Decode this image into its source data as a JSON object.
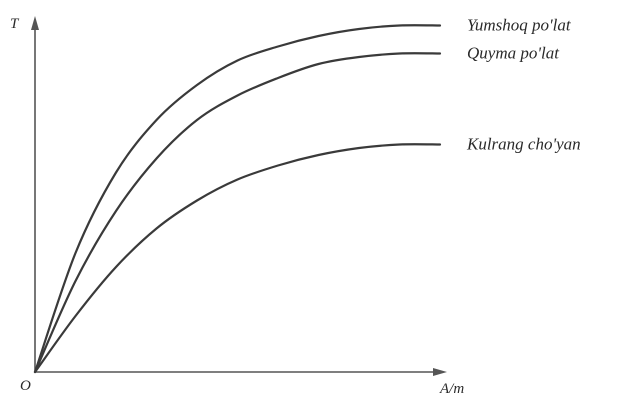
{
  "chart_data": {
    "type": "line",
    "title": "",
    "ylabel": "T",
    "xlabel": "A/m",
    "origin_label": "O",
    "grid": false,
    "legend": "inline-right",
    "xlim": [
      0,
      10
    ],
    "ylim": [
      0,
      10
    ],
    "series": [
      {
        "name": "Yumshoq po'lat",
        "x": [
          0,
          1,
          2,
          3,
          4,
          5,
          6,
          7,
          8,
          9,
          10
        ],
        "values": [
          0,
          3.4,
          5.7,
          7.2,
          8.2,
          8.9,
          9.3,
          9.6,
          9.8,
          9.9,
          9.9
        ]
      },
      {
        "name": "Quyma po'lat",
        "x": [
          0,
          1,
          2,
          3,
          4,
          5,
          6,
          7,
          8,
          9,
          10
        ],
        "values": [
          0,
          2.6,
          4.6,
          6.1,
          7.2,
          7.9,
          8.4,
          8.8,
          9.0,
          9.1,
          9.1
        ]
      },
      {
        "name": "Kulrang cho'yan",
        "x": [
          0,
          1,
          2,
          3,
          4,
          5,
          6,
          7,
          8,
          9,
          10
        ],
        "values": [
          0,
          1.6,
          3.0,
          4.1,
          4.9,
          5.5,
          5.9,
          6.2,
          6.4,
          6.5,
          6.5
        ]
      }
    ]
  }
}
